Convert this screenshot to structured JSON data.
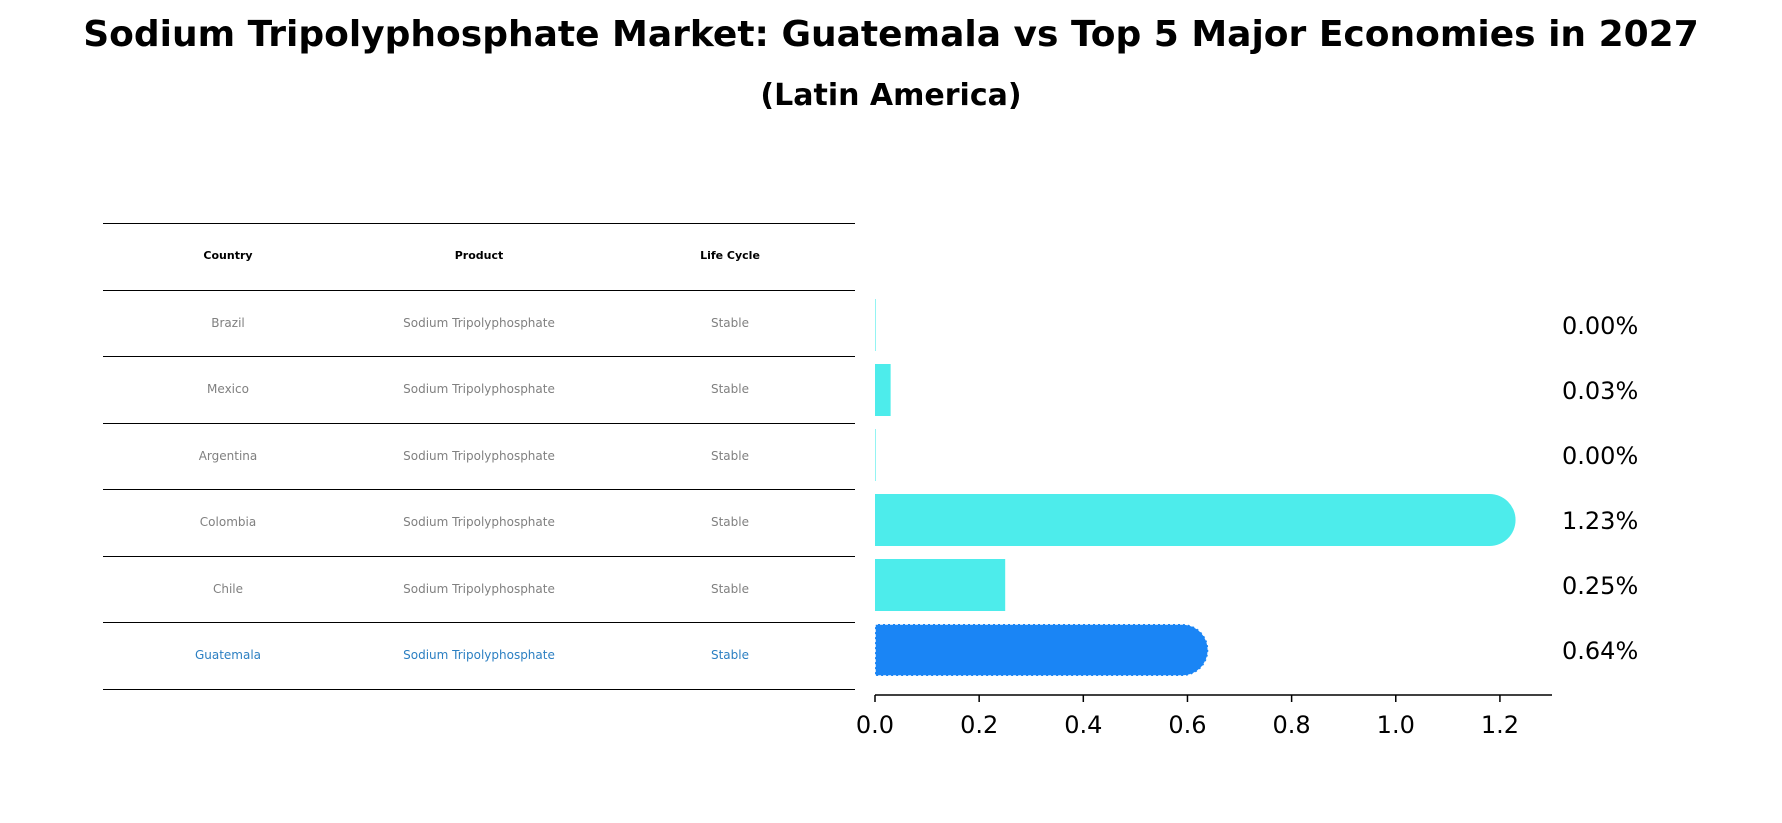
{
  "title": "Sodium Tripolyphosphate Market: Guatemala vs Top 5 Major Economies in 2027",
  "subtitle": "(Latin America)",
  "colors": {
    "bar_default": "#4deceb",
    "bar_highlight": "#1a85f5",
    "text_muted": "#808080",
    "text_highlight": "#2b7fc2",
    "text_header": "#000000"
  },
  "table": {
    "headers": [
      "Country",
      "Product",
      "Life Cycle"
    ],
    "rows": [
      {
        "country": "Brazil",
        "product": "Sodium Tripolyphosphate",
        "life_cycle": "Stable",
        "highlight": false
      },
      {
        "country": "Mexico",
        "product": "Sodium Tripolyphosphate",
        "life_cycle": "Stable",
        "highlight": false
      },
      {
        "country": "Argentina",
        "product": "Sodium Tripolyphosphate",
        "life_cycle": "Stable",
        "highlight": false
      },
      {
        "country": "Colombia",
        "product": "Sodium Tripolyphosphate",
        "life_cycle": "Stable",
        "highlight": false
      },
      {
        "country": "Chile",
        "product": "Sodium Tripolyphosphate",
        "life_cycle": "Stable",
        "highlight": false
      },
      {
        "country": "Guatemala",
        "product": "Sodium Tripolyphosphate",
        "life_cycle": "Stable",
        "highlight": true
      }
    ]
  },
  "chart_data": {
    "type": "bar",
    "orientation": "horizontal",
    "categories": [
      "Brazil",
      "Mexico",
      "Argentina",
      "Colombia",
      "Chile",
      "Guatemala"
    ],
    "values": [
      0.0,
      0.03,
      0.0,
      1.23,
      0.25,
      0.64
    ],
    "value_labels": [
      "0.00%",
      "0.03%",
      "0.00%",
      "1.23%",
      "0.25%",
      "0.64%"
    ],
    "highlight_category": "Guatemala",
    "xlim": [
      0,
      1.3
    ],
    "xticks": [
      0.0,
      0.2,
      0.4,
      0.6,
      0.8,
      1.0,
      1.2
    ],
    "xtick_labels": [
      "0.0",
      "0.2",
      "0.4",
      "0.6",
      "0.8",
      "1.0",
      "1.2"
    ],
    "xlabel": "",
    "ylabel": "",
    "grid": false
  }
}
